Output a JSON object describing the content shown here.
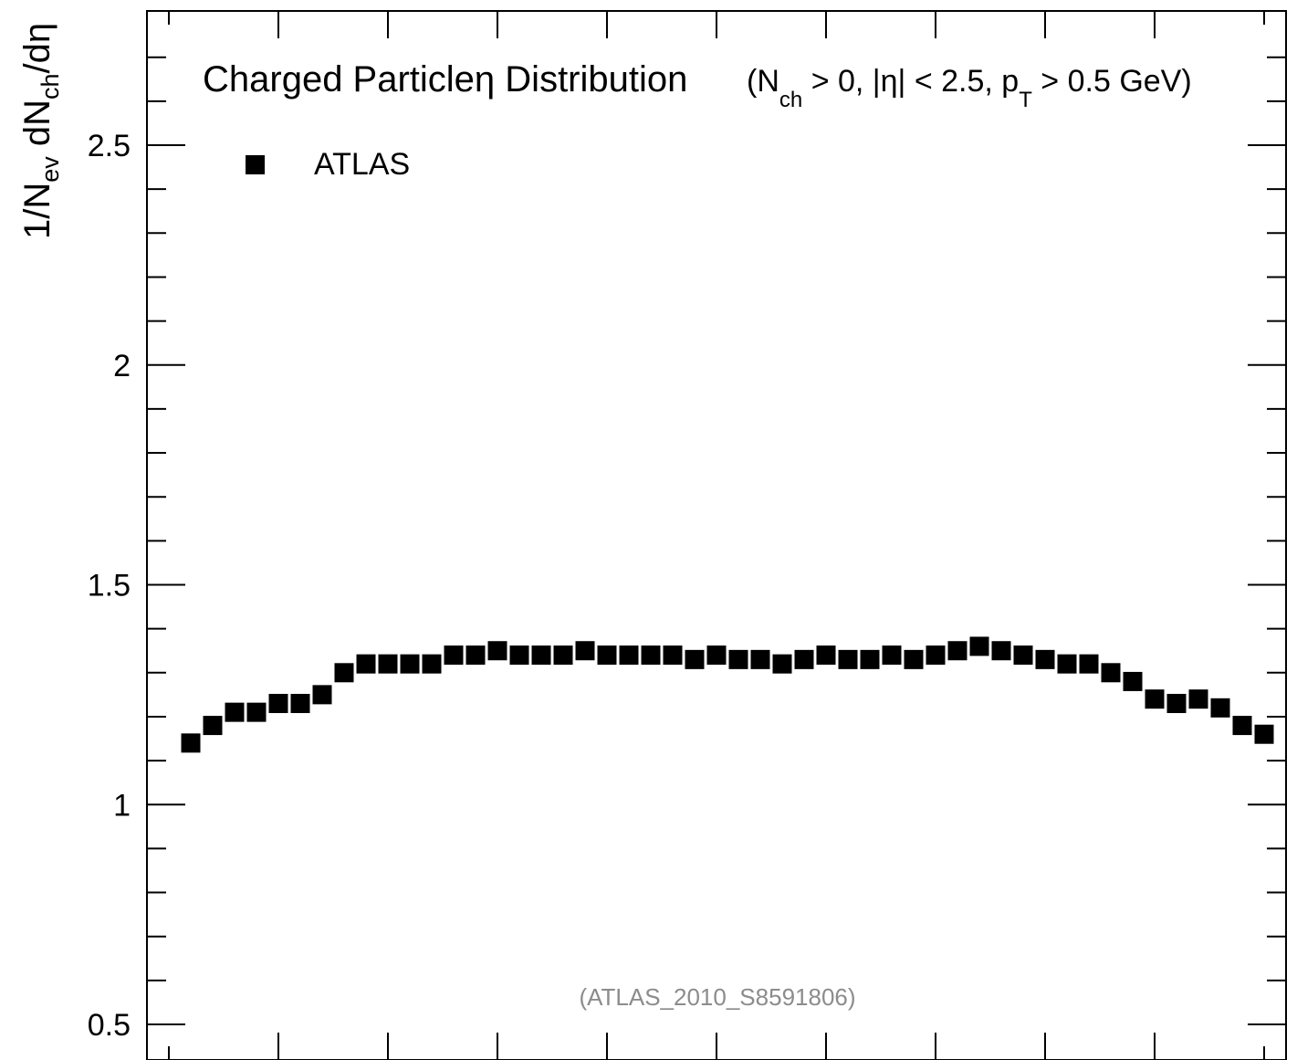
{
  "chart_data": {
    "type": "scatter",
    "title": {
      "main": "Charged Particleη Distribution",
      "cond_1": "(N",
      "cond_1_sub": "ch",
      "cond_2": " > 0, |η| < 2.5, p",
      "cond_2_sub": "T",
      "cond_3": " > 0.5 GeV)"
    },
    "ylabel": {
      "p1": "1/N",
      "s1": "ev",
      "p2": " dN",
      "s2": "ch",
      "p3": "/dη"
    },
    "ylim": [
      0.45,
      2.8
    ],
    "xlim": [
      -2.5,
      2.5
    ],
    "yticks": [
      {
        "value": 0.5,
        "label": "0.5"
      },
      {
        "value": 1.0,
        "label": "1"
      },
      {
        "value": 1.5,
        "label": "1.5"
      },
      {
        "value": 2.0,
        "label": "2"
      },
      {
        "value": 2.5,
        "label": "2.5"
      }
    ],
    "xticks_major": [
      -2,
      -1.5,
      -1,
      -0.5,
      0,
      0.5,
      1,
      1.5,
      2
    ],
    "series": [
      {
        "name": "ATLAS",
        "marker": "square",
        "color": "#000000",
        "x": [
          -2.45,
          -2.35,
          -2.25,
          -2.15,
          -2.05,
          -1.95,
          -1.85,
          -1.75,
          -1.65,
          -1.55,
          -1.45,
          -1.35,
          -1.25,
          -1.15,
          -1.05,
          -0.95,
          -0.85,
          -0.75,
          -0.65,
          -0.55,
          -0.45,
          -0.35,
          -0.25,
          -0.15,
          -0.05,
          0.05,
          0.15,
          0.25,
          0.35,
          0.45,
          0.55,
          0.65,
          0.75,
          0.85,
          0.95,
          1.05,
          1.15,
          1.25,
          1.35,
          1.45,
          1.55,
          1.65,
          1.75,
          1.85,
          1.95,
          2.05,
          2.15,
          2.25,
          2.35,
          2.45
        ],
        "y": [
          1.14,
          1.18,
          1.21,
          1.21,
          1.23,
          1.23,
          1.25,
          1.3,
          1.32,
          1.32,
          1.32,
          1.32,
          1.34,
          1.34,
          1.35,
          1.34,
          1.34,
          1.34,
          1.35,
          1.34,
          1.34,
          1.34,
          1.34,
          1.33,
          1.34,
          1.33,
          1.33,
          1.32,
          1.33,
          1.34,
          1.33,
          1.33,
          1.34,
          1.33,
          1.34,
          1.35,
          1.36,
          1.35,
          1.34,
          1.33,
          1.32,
          1.32,
          1.3,
          1.28,
          1.24,
          1.23,
          1.24,
          1.22,
          1.18,
          1.16
        ]
      }
    ],
    "legend": {
      "placement": "top-left",
      "label": "ATLAS"
    },
    "annotation": "(ATLAS_2010_S8591806)",
    "grid": false,
    "colors": {
      "marker": "#000000",
      "annotation": "#8c8c8c",
      "axes": "#000000"
    }
  }
}
